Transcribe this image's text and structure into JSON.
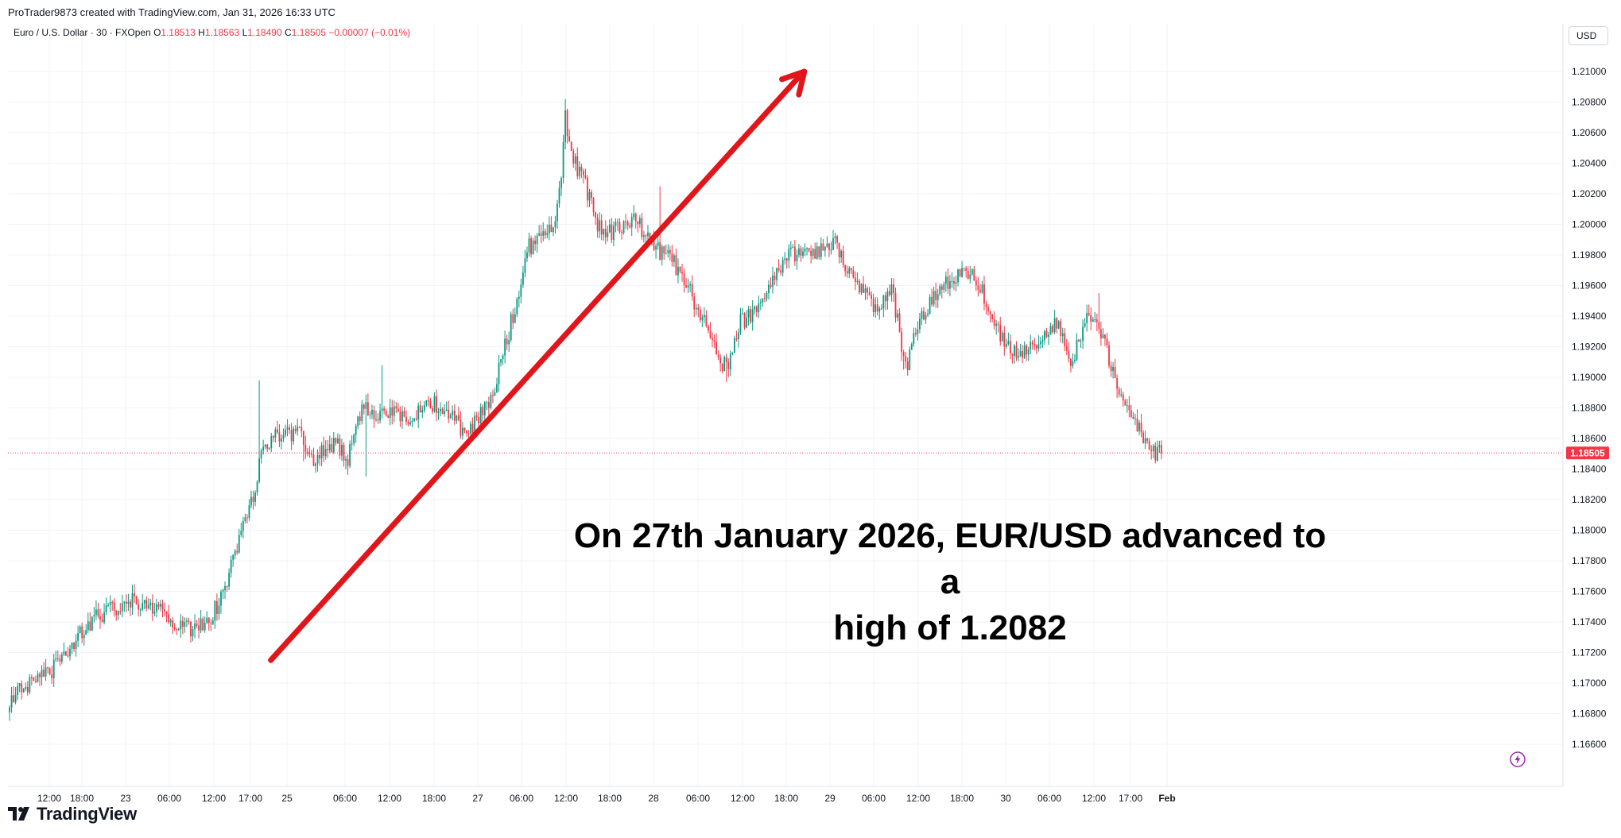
{
  "header": {
    "attribution": "ProTrader9873 created with TradingView.com, Jan 31, 2026 16:33 UTC",
    "symbol_title": "Euro / U.S. Dollar · 30 · FXOpen",
    "open_label": "O",
    "open": "1.18513",
    "high_label": "H",
    "high": "1.18563",
    "low_label": "L",
    "low": "1.18490",
    "close_label": "C",
    "close": "1.18505",
    "change": "−0.00007 (−0.01%)",
    "currency": "USD"
  },
  "annotation": {
    "line1": "On 27th January 2026, EUR/USD advanced to a",
    "line2": "high of 1.2082"
  },
  "footer": {
    "brand": "TradingView"
  },
  "icons": {
    "logo": "tradingview-logo-icon",
    "flash": "lightning-icon"
  },
  "colors": {
    "up": "#089981",
    "down": "#f23645",
    "arrow": "#e0161b",
    "grid": "#f0f3fa",
    "price_line": "#f23645"
  },
  "chart_data": {
    "type": "candlestick",
    "symbol": "EUR/USD",
    "interval": "30",
    "ylim": [
      1.1653,
      1.2115
    ],
    "y_ticks": [
      "1.21000",
      "1.20800",
      "1.20600",
      "1.20400",
      "1.20200",
      "1.20000",
      "1.19800",
      "1.19600",
      "1.19400",
      "1.19200",
      "1.19000",
      "1.18800",
      "1.18600",
      "1.18400",
      "1.18200",
      "1.18000",
      "1.17800",
      "1.17600",
      "1.17400",
      "1.17200",
      "1.17000",
      "1.16800",
      "1.16600"
    ],
    "x_ticks": [
      "12:00",
      "18:00",
      "23",
      "06:00",
      "12:00",
      "17:00",
      "25",
      "06:00",
      "12:00",
      "18:00",
      "27",
      "06:00",
      "12:00",
      "18:00",
      "28",
      "06:00",
      "12:00",
      "18:00",
      "29",
      "06:00",
      "12:00",
      "18:00",
      "30",
      "06:00",
      "12:00",
      "17:00",
      "Feb"
    ],
    "last_price": "1.18505",
    "last_price_value": 1.18505,
    "waypoints": [
      [
        0,
        1.169
      ],
      [
        20,
        1.1706
      ],
      [
        40,
        1.174
      ],
      [
        60,
        1.1755
      ],
      [
        70,
        1.1752
      ],
      [
        80,
        1.1742
      ],
      [
        86,
        1.1734
      ],
      [
        100,
        1.1742
      ],
      [
        106,
        1.176
      ],
      [
        115,
        1.18
      ],
      [
        122,
        1.1828
      ],
      [
        126,
        1.1855
      ],
      [
        134,
        1.1862
      ],
      [
        144,
        1.1864
      ],
      [
        150,
        1.1845
      ],
      [
        162,
        1.1858
      ],
      [
        168,
        1.1846
      ],
      [
        175,
        1.188
      ],
      [
        185,
        1.1877
      ],
      [
        200,
        1.1874
      ],
      [
        206,
        1.1885
      ],
      [
        220,
        1.1876
      ],
      [
        227,
        1.186
      ],
      [
        240,
        1.189
      ],
      [
        248,
        1.193
      ],
      [
        258,
        1.1985
      ],
      [
        265,
        1.199
      ],
      [
        270,
        1.1998
      ],
      [
        274,
        1.203
      ],
      [
        276,
        1.2072
      ],
      [
        278,
        1.205
      ],
      [
        286,
        1.2025
      ],
      [
        292,
        1.2
      ],
      [
        300,
        1.1995
      ],
      [
        310,
        1.2005
      ],
      [
        320,
        1.1985
      ],
      [
        330,
        1.1975
      ],
      [
        340,
        1.195
      ],
      [
        350,
        1.192
      ],
      [
        356,
        1.1905
      ],
      [
        362,
        1.1935
      ],
      [
        375,
        1.195
      ],
      [
        385,
        1.198
      ],
      [
        398,
        1.198
      ],
      [
        410,
        1.199
      ],
      [
        420,
        1.196
      ],
      [
        430,
        1.1945
      ],
      [
        438,
        1.196
      ],
      [
        445,
        1.1905
      ],
      [
        452,
        1.194
      ],
      [
        465,
        1.196
      ],
      [
        478,
        1.1972
      ],
      [
        485,
        1.195
      ],
      [
        495,
        1.192
      ],
      [
        503,
        1.1918
      ],
      [
        512,
        1.1925
      ],
      [
        520,
        1.1935
      ],
      [
        528,
        1.191
      ],
      [
        536,
        1.1945
      ],
      [
        544,
        1.192
      ],
      [
        552,
        1.189
      ],
      [
        560,
        1.187
      ],
      [
        566,
        1.1852
      ],
      [
        572,
        1.185
      ]
    ],
    "spikes": [
      [
        276,
        1.2082
      ],
      [
        124,
        1.1898
      ],
      [
        323,
        1.2025
      ],
      [
        185,
        1.1908
      ],
      [
        177,
        1.1835
      ],
      [
        356,
        1.1897
      ],
      [
        444,
        1.1905
      ],
      [
        541,
        1.1955
      ],
      [
        146,
        1.1845
      ]
    ],
    "annotation_arrow": {
      "from": [
        95,
        1.1715
      ],
      "to": [
        298,
        1.21
      ]
    }
  }
}
